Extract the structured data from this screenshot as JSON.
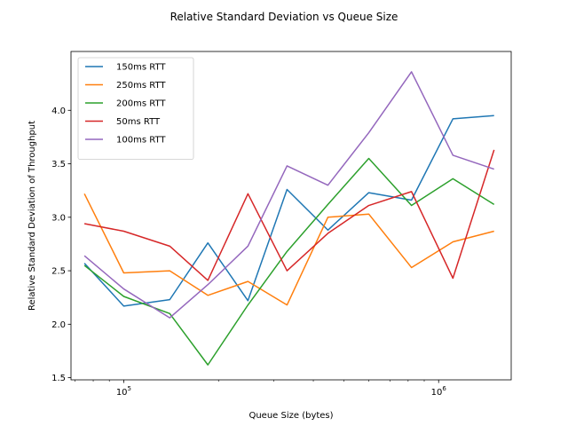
{
  "chart_data": {
    "type": "line",
    "title": "Relative Standard Deviation vs Queue Size",
    "xlabel": "Queue Size (bytes)",
    "ylabel": "Relative Standard Deviation of Throughput",
    "xscale": "log",
    "xlim": [
      68000,
      1700000
    ],
    "ylim": [
      1.48,
      4.55
    ],
    "yticks": [
      1.5,
      2.0,
      2.5,
      3.0,
      3.5,
      4.0
    ],
    "ytick_labels": [
      "1.5",
      "2.0",
      "2.5",
      "3.0",
      "3.5",
      "4.0"
    ],
    "xticks_major": [
      100000,
      1000000
    ],
    "xtick_labels": [
      "10^5",
      "10^6"
    ],
    "grid": false,
    "legend_position": "top-left",
    "x": [
      75000,
      100000,
      140000,
      185000,
      248000,
      330000,
      445000,
      600000,
      820000,
      1110000,
      1500000
    ],
    "series": [
      {
        "name": "150ms RTT",
        "color": "#1f77b4",
        "values": [
          2.57,
          2.17,
          2.23,
          2.76,
          2.22,
          3.26,
          2.88,
          3.23,
          3.16,
          3.92,
          3.95
        ]
      },
      {
        "name": "250ms RTT",
        "color": "#ff7f0e",
        "values": [
          3.22,
          2.48,
          2.5,
          2.27,
          2.4,
          2.18,
          3.0,
          3.03,
          2.53,
          2.77,
          2.87
        ]
      },
      {
        "name": "200ms RTT",
        "color": "#2ca02c",
        "values": [
          2.55,
          2.26,
          2.1,
          1.62,
          2.18,
          2.68,
          3.12,
          3.55,
          3.11,
          3.36,
          3.12
        ]
      },
      {
        "name": "50ms RTT",
        "color": "#d62728",
        "values": [
          2.94,
          2.87,
          2.73,
          2.41,
          3.22,
          2.5,
          2.85,
          3.11,
          3.24,
          2.43,
          3.63
        ]
      },
      {
        "name": "100ms RTT",
        "color": "#9467bd",
        "values": [
          2.64,
          2.33,
          2.06,
          2.37,
          2.73,
          3.48,
          3.3,
          3.79,
          4.36,
          3.58,
          3.45
        ]
      }
    ]
  }
}
